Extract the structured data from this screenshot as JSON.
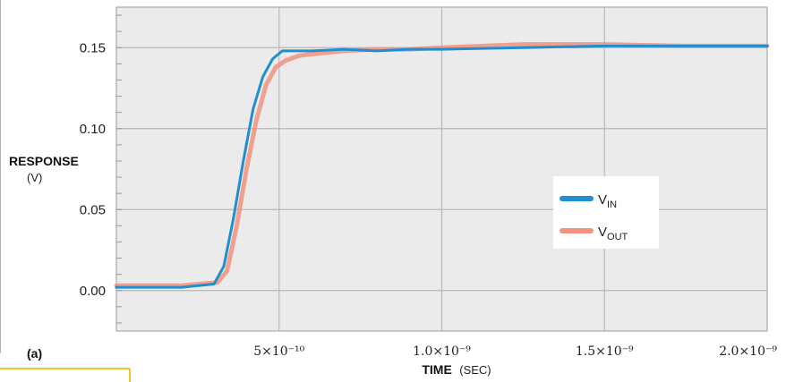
{
  "panel_label": "(a)",
  "colors": {
    "plot_background": "#ebebeb",
    "grid": "#b8b8b8",
    "v_in": "#1f8fcf",
    "v_out": "#f1937e",
    "accent": "#f2c230"
  },
  "chart_data": {
    "type": "line",
    "title": "",
    "xlabel": "TIME",
    "xlabel_unit": "(SEC)",
    "ylabel": "RESPONSE",
    "ylabel_unit": "(V)",
    "xlim": [
      0,
      2e-09
    ],
    "ylim": [
      -0.025,
      0.175
    ],
    "grid": true,
    "legend_position": "center-right",
    "x_ticks": [
      {
        "value": 5e-10,
        "label": "5×10⁻¹⁰"
      },
      {
        "value": 1e-09,
        "label": "1.0×10⁻⁹"
      },
      {
        "value": 1.5e-09,
        "label": "1.5×10⁻⁹"
      },
      {
        "value": 2e-09,
        "label": "2.0×10⁻⁹"
      }
    ],
    "y_ticks": [
      {
        "value": 0.0,
        "label": "0.00"
      },
      {
        "value": 0.05,
        "label": "0.05"
      },
      {
        "value": 0.1,
        "label": "0.10"
      },
      {
        "value": 0.15,
        "label": "0.15"
      }
    ],
    "series": [
      {
        "name": "V",
        "subscript": "IN",
        "color": "#1f8fcf",
        "x": [
          0,
          2e-10,
          3e-10,
          3.3e-10,
          3.6e-10,
          3.9e-10,
          4.2e-10,
          4.5e-10,
          4.8e-10,
          5.1e-10,
          5.5e-10,
          6e-10,
          7e-10,
          8e-10,
          9e-10,
          1e-09,
          1.25e-09,
          1.5e-09,
          1.75e-09,
          2e-09
        ],
        "values": [
          0.002,
          0.002,
          0.004,
          0.015,
          0.045,
          0.08,
          0.112,
          0.132,
          0.143,
          0.148,
          0.148,
          0.148,
          0.149,
          0.148,
          0.149,
          0.149,
          0.15,
          0.151,
          0.151,
          0.151
        ]
      },
      {
        "name": "V",
        "subscript": "OUT",
        "color": "#f1937e",
        "x": [
          0,
          2e-10,
          3.1e-10,
          3.4e-10,
          3.7e-10,
          4e-10,
          4.3e-10,
          4.6e-10,
          4.9e-10,
          5.2e-10,
          5.6e-10,
          6e-10,
          7e-10,
          8e-10,
          9e-10,
          1e-09,
          1.25e-09,
          1.5e-09,
          1.75e-09,
          2e-09
        ],
        "values": [
          0.003,
          0.003,
          0.005,
          0.012,
          0.04,
          0.075,
          0.105,
          0.127,
          0.138,
          0.142,
          0.145,
          0.146,
          0.148,
          0.149,
          0.149,
          0.15,
          0.152,
          0.152,
          0.151,
          0.151
        ]
      }
    ]
  }
}
